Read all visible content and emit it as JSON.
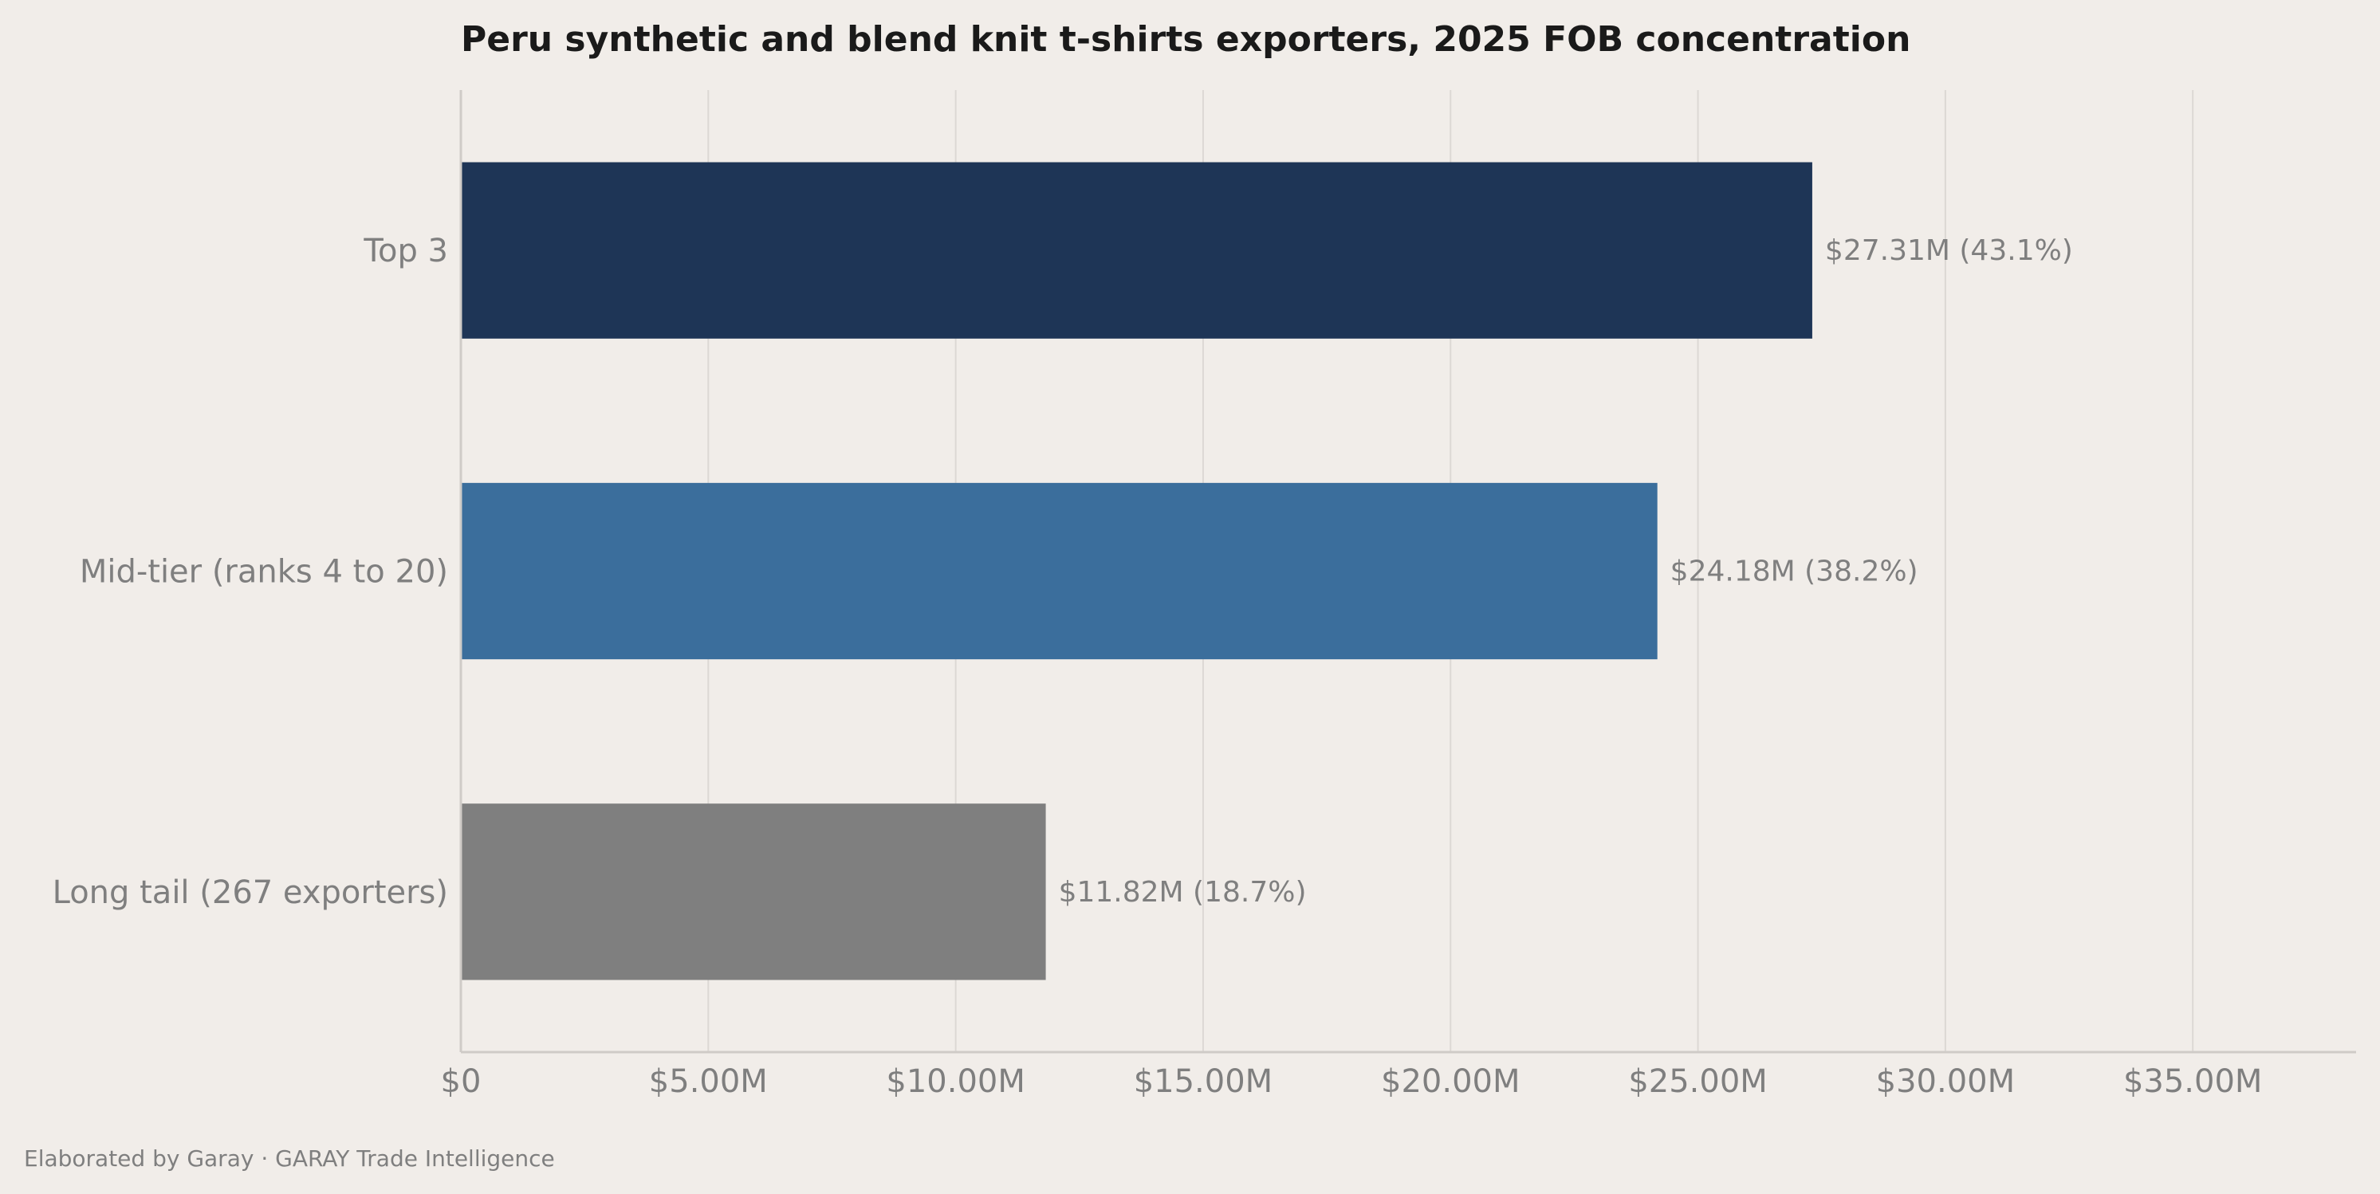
{
  "chart_data": {
    "type": "bar",
    "orientation": "horizontal",
    "title": "Peru synthetic and blend knit t-shirts exporters, 2025 FOB concentration",
    "categories": [
      "Top 3",
      "Mid-tier (ranks 4 to 20)",
      "Long tail (267 exporters)"
    ],
    "values": [
      27.31,
      24.18,
      11.82
    ],
    "value_unit": "USD millions",
    "data_labels": [
      "$27.31M  (43.1%)",
      "$24.18M  (38.2%)",
      "$11.82M  (18.7%)"
    ],
    "colors": [
      "#1e3556",
      "#3b6e9c",
      "#7f7f7f"
    ],
    "x_ticks": [
      0,
      5,
      10,
      15,
      20,
      25,
      30,
      35
    ],
    "x_tick_labels": [
      "$0",
      "$5.00M",
      "$10.00M",
      "$15.00M",
      "$20.00M",
      "$25.00M",
      "$30.00M",
      "$35.00M"
    ],
    "xlim": [
      0,
      38.3
    ],
    "xlabel": "",
    "ylabel": "",
    "grid": "vertical",
    "legend": "none"
  },
  "footer": "Elaborated by Garay  ·  GARAY Trade Intelligence"
}
